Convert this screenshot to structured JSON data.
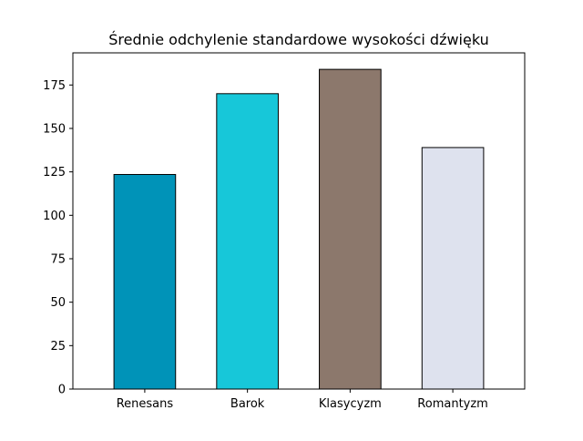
{
  "chart_data": {
    "type": "bar",
    "title": "Średnie odchylenie standardowe wysokości dźwięku",
    "xlabel": "",
    "ylabel": "",
    "categories": [
      "Renesans",
      "Barok",
      "Klasycyzm",
      "Romantyzm"
    ],
    "values": [
      123.5,
      170,
      184,
      139
    ],
    "colors": [
      "#0093b8",
      "#17c7d9",
      "#8c786c",
      "#dee2ee"
    ],
    "edge_color": "#000000",
    "ylim": [
      0,
      193.5
    ],
    "yticks": [
      0,
      25,
      50,
      75,
      100,
      125,
      150,
      175
    ],
    "grid": false,
    "legend": "none"
  }
}
